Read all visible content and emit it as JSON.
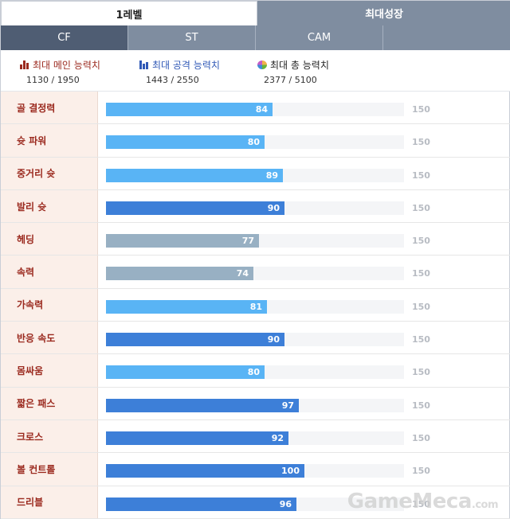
{
  "top_tabs": [
    {
      "label": "1레벨",
      "active": true
    },
    {
      "label": "최대성장",
      "active": false
    }
  ],
  "position_tabs": [
    {
      "label": "CF",
      "active": true
    },
    {
      "label": "ST",
      "active": false
    },
    {
      "label": "CAM",
      "active": false
    }
  ],
  "summary": {
    "main": {
      "title": "최대 메인 능력치",
      "value": "1130 / 1950",
      "icon": "bar-chart-icon",
      "color": "#9b2a1f"
    },
    "attack": {
      "title": "최대 공격 능력치",
      "value": "1443 / 2550",
      "icon": "bar-chart-icon",
      "color": "#2f58b6"
    },
    "total": {
      "title": "최대 총 능력치",
      "value": "2377 / 5100",
      "icon": "pie-chart-icon"
    }
  },
  "stats_max": "150",
  "stats": [
    {
      "label": "골 결정력",
      "value": "84",
      "color": "light"
    },
    {
      "label": "슛 파워",
      "value": "80",
      "color": "light"
    },
    {
      "label": "중거리 슛",
      "value": "89",
      "color": "light"
    },
    {
      "label": "발리 슛",
      "value": "90",
      "color": "dark"
    },
    {
      "label": "헤딩",
      "value": "77",
      "color": "gray"
    },
    {
      "label": "속력",
      "value": "74",
      "color": "gray"
    },
    {
      "label": "가속력",
      "value": "81",
      "color": "light"
    },
    {
      "label": "반응 속도",
      "value": "90",
      "color": "dark"
    },
    {
      "label": "몸싸움",
      "value": "80",
      "color": "light"
    },
    {
      "label": "짧은 패스",
      "value": "97",
      "color": "dark"
    },
    {
      "label": "크로스",
      "value": "92",
      "color": "dark"
    },
    {
      "label": "볼 컨트롤",
      "value": "100",
      "color": "dark"
    },
    {
      "label": "드리블",
      "value": "96",
      "color": "dark"
    }
  ],
  "colors": {
    "light": "#59b4f5",
    "dark": "#3d7fd8",
    "gray": "#98b0c3"
  },
  "watermark": {
    "text": "GameMeca",
    "suffix": ".com"
  }
}
